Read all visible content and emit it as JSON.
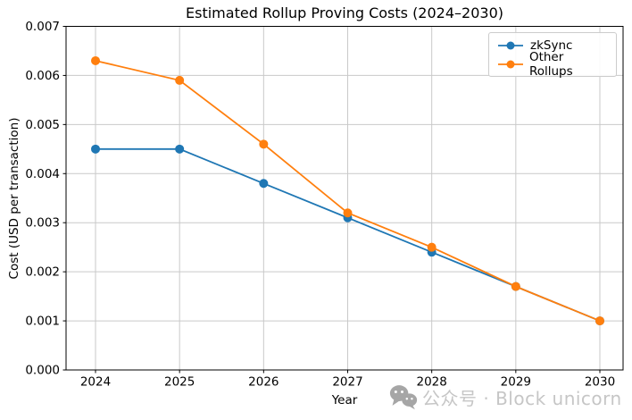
{
  "chart_data": {
    "type": "line",
    "title": "Estimated Rollup Proving Costs (2024–2030)",
    "xlabel": "Year",
    "ylabel": "Cost (USD per transaction)",
    "x": [
      2024,
      2025,
      2026,
      2027,
      2028,
      2029,
      2030
    ],
    "x_ticklabels": [
      "2024",
      "2025",
      "2026",
      "2027",
      "2028",
      "2029",
      "2030"
    ],
    "yticks": [
      0.0,
      0.001,
      0.002,
      0.003,
      0.004,
      0.005,
      0.006,
      0.007
    ],
    "y_ticklabels": [
      "0.000",
      "0.001",
      "0.002",
      "0.003",
      "0.004",
      "0.005",
      "0.006",
      "0.007"
    ],
    "ylim": [
      0,
      0.007
    ],
    "grid": true,
    "legend_position": "upper right",
    "series": [
      {
        "name": "zkSync",
        "color": "#1f77b4",
        "marker": "circle",
        "values": [
          0.0045,
          0.0045,
          0.0038,
          0.0031,
          0.0024,
          0.0017,
          0.001
        ]
      },
      {
        "name": "Other Rollups",
        "color": "#ff7f0e",
        "marker": "circle",
        "values": [
          0.0063,
          0.0059,
          0.0046,
          0.0032,
          0.0025,
          0.0017,
          0.001
        ]
      }
    ]
  },
  "watermark": {
    "icon": "wechat-icon",
    "text": "公众号 · Block unicorn",
    "icon_color": "#a6a6a6",
    "text_color": "#c6c6c6"
  },
  "colors": {
    "grid": "#c9c9c9",
    "spine": "#000000",
    "tick_label": "#000000",
    "background": "#ffffff"
  }
}
